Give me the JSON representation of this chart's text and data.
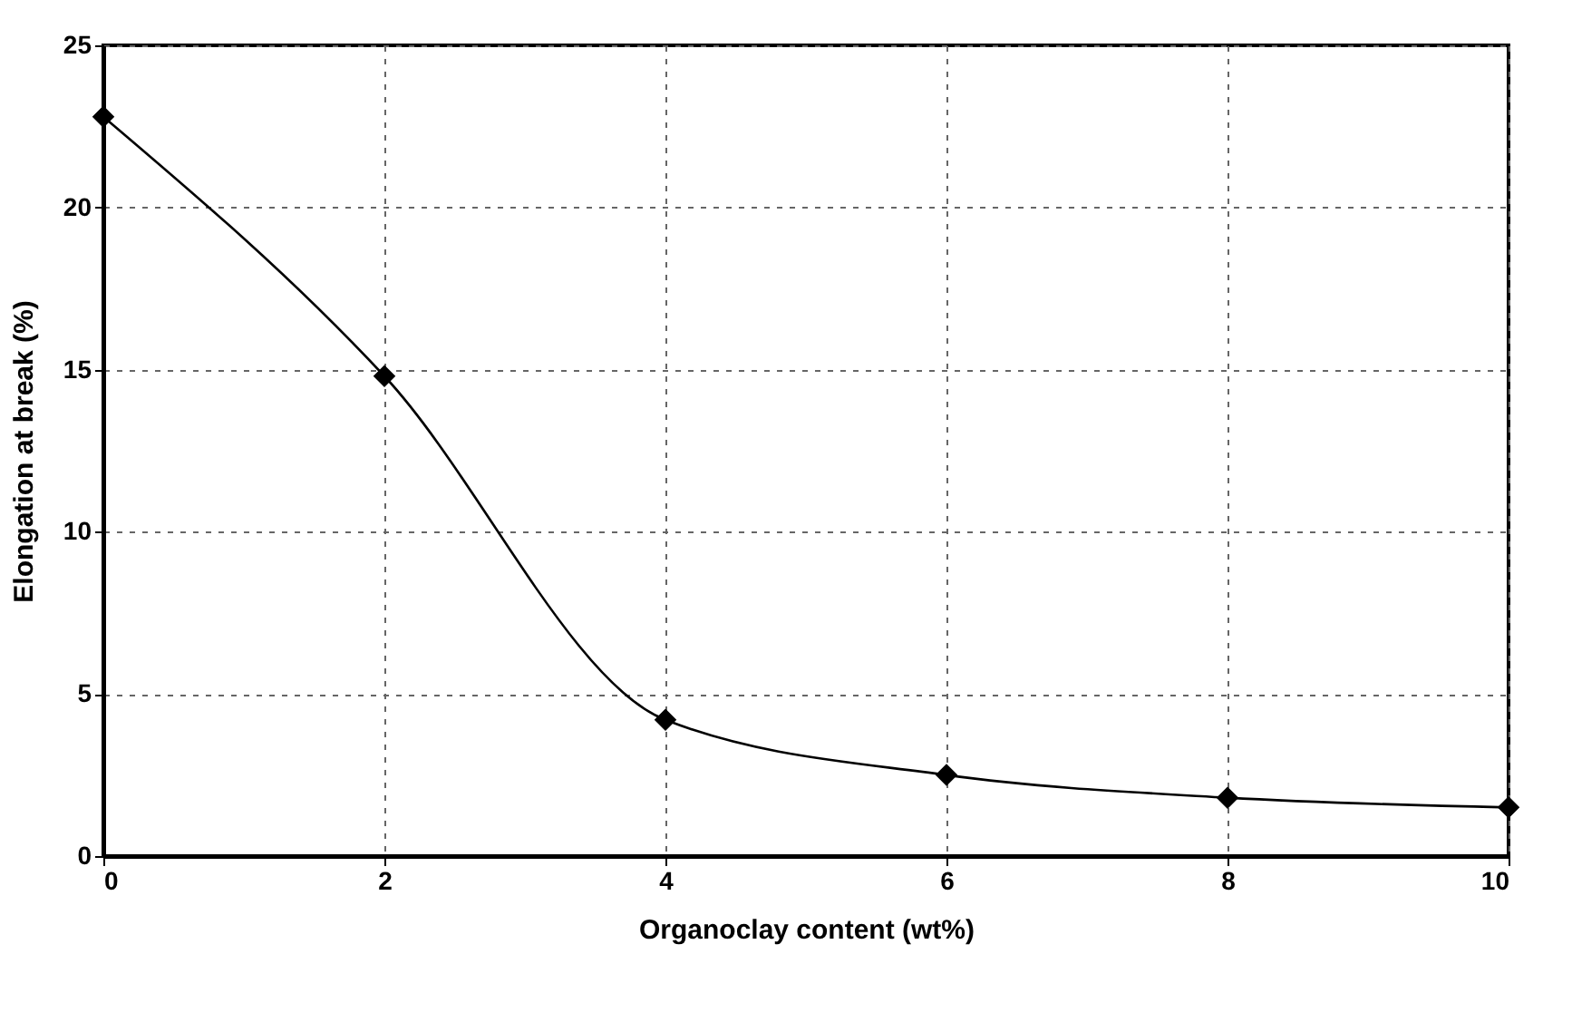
{
  "chart_data": {
    "type": "line",
    "xlabel": "Organoclay content (wt%)",
    "ylabel": "Elongation at break (%)",
    "x": [
      0,
      2,
      4,
      6,
      8,
      10
    ],
    "series": [
      {
        "color": "#000000",
        "values": [
          22.8,
          14.8,
          4.2,
          2.5,
          1.8,
          1.5
        ]
      }
    ],
    "xlim": [
      0,
      10
    ],
    "xticks": [
      0,
      2,
      4,
      6,
      8,
      10
    ],
    "ylim": [
      0,
      25
    ],
    "yticks": [
      0,
      5,
      10,
      15,
      20,
      25
    ],
    "grid": true,
    "marker": "diamond"
  }
}
